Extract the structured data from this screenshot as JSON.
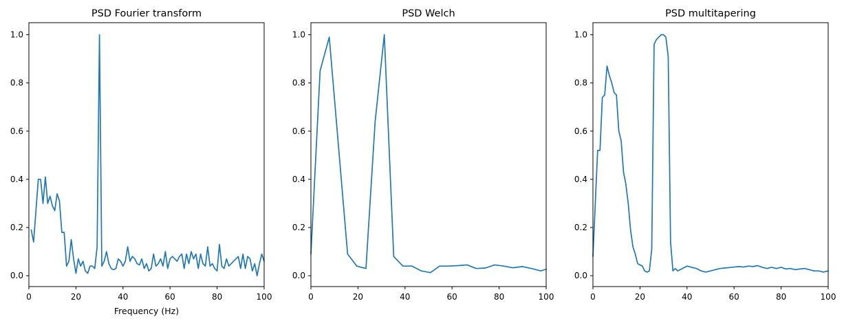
{
  "chart_data": [
    {
      "type": "line",
      "title": "PSD Fourier transform",
      "xlabel": "Frequency (Hz)",
      "ylabel": "",
      "xlim": [
        0,
        100
      ],
      "ylim": [
        -0.045,
        1.05
      ],
      "xticks": [
        0,
        20,
        40,
        60,
        80,
        100
      ],
      "xtick_labels": [
        "0",
        "20",
        "40",
        "60",
        "80",
        "100"
      ],
      "yticks": [
        0.0,
        0.2,
        0.4,
        0.6,
        0.8,
        1.0
      ],
      "ytick_labels": [
        "0.0",
        "0.2",
        "0.4",
        "0.6",
        "0.8",
        "1.0"
      ],
      "grid": false,
      "color": "#1f77b4",
      "series": [
        {
          "x": [
            1,
            2,
            3,
            4,
            5,
            6,
            7,
            8,
            9,
            10,
            11,
            12,
            13,
            14,
            15,
            16,
            17,
            18,
            19,
            20,
            21,
            22,
            23,
            24,
            25,
            26,
            27,
            28,
            29,
            30,
            31,
            32,
            33,
            34,
            35,
            36,
            37,
            38,
            39,
            40,
            41,
            42,
            43,
            44,
            45,
            46,
            47,
            48,
            49,
            50,
            51,
            52,
            53,
            54,
            55,
            56,
            57,
            58,
            59,
            60,
            61,
            62,
            63,
            64,
            65,
            66,
            67,
            68,
            69,
            70,
            71,
            72,
            73,
            74,
            75,
            76,
            77,
            78,
            79,
            80,
            81,
            82,
            83,
            84,
            85,
            86,
            87,
            88,
            89,
            90,
            91,
            92,
            93,
            94,
            95,
            96,
            97,
            98,
            99,
            100
          ],
          "y": [
            0.19,
            0.14,
            0.27,
            0.4,
            0.4,
            0.3,
            0.41,
            0.3,
            0.33,
            0.29,
            0.27,
            0.34,
            0.31,
            0.18,
            0.18,
            0.04,
            0.06,
            0.15,
            0.07,
            0.01,
            0.07,
            0.04,
            0.06,
            0.02,
            0.01,
            0.04,
            0.04,
            0.03,
            0.12,
            1.0,
            0.04,
            0.06,
            0.1,
            0.05,
            0.03,
            0.025,
            0.03,
            0.07,
            0.06,
            0.04,
            0.06,
            0.12,
            0.06,
            0.08,
            0.07,
            0.05,
            0.045,
            0.07,
            0.03,
            0.05,
            0.02,
            0.03,
            0.09,
            0.04,
            0.05,
            0.07,
            0.04,
            0.1,
            0.03,
            0.07,
            0.08,
            0.07,
            0.06,
            0.08,
            0.09,
            0.03,
            0.09,
            0.05,
            0.1,
            0.07,
            0.09,
            0.03,
            0.09,
            0.05,
            0.04,
            0.12,
            0.04,
            0.05,
            0.03,
            0.02,
            0.13,
            0.04,
            0.03,
            0.07,
            0.04,
            0.05,
            0.06,
            0.07,
            0.08,
            0.03,
            0.09,
            0.03,
            0.08,
            0.07,
            0.02,
            0.05,
            0.0,
            0.05,
            0.09,
            0.06
          ]
        }
      ]
    },
    {
      "type": "line",
      "title": "PSD Welch",
      "xlabel": "",
      "ylabel": "",
      "xlim": [
        0,
        100
      ],
      "ylim": [
        -0.045,
        1.05
      ],
      "xticks": [
        0,
        20,
        40,
        60,
        80,
        100
      ],
      "xtick_labels": [
        "0",
        "20",
        "40",
        "60",
        "80",
        "100"
      ],
      "yticks": [
        0.0,
        0.2,
        0.4,
        0.6,
        0.8,
        1.0
      ],
      "ytick_labels": [
        "0.0",
        "0.2",
        "0.4",
        "0.6",
        "0.8",
        "1.0"
      ],
      "grid": false,
      "color": "#1f77b4",
      "series": [
        {
          "x": [
            0,
            3.9,
            7.8,
            11.7,
            15.6,
            19.5,
            23.4,
            27.3,
            31.2,
            35.2,
            39.1,
            43.0,
            46.9,
            50.8,
            54.7,
            58.6,
            62.5,
            66.4,
            70.3,
            74.2,
            78.1,
            82.0,
            85.9,
            89.8,
            93.8,
            97.7,
            100
          ],
          "y": [
            0.09,
            0.85,
            0.99,
            0.54,
            0.09,
            0.04,
            0.03,
            0.64,
            1.0,
            0.08,
            0.04,
            0.04,
            0.02,
            0.013,
            0.04,
            0.04,
            0.042,
            0.045,
            0.03,
            0.032,
            0.045,
            0.04,
            0.033,
            0.038,
            0.03,
            0.02,
            0.027
          ]
        }
      ]
    },
    {
      "type": "line",
      "title": "PSD multitapering",
      "xlabel": "",
      "ylabel": "",
      "xlim": [
        0,
        100
      ],
      "ylim": [
        -0.045,
        1.05
      ],
      "xticks": [
        0,
        20,
        40,
        60,
        80,
        100
      ],
      "xtick_labels": [
        "0",
        "20",
        "40",
        "60",
        "80",
        "100"
      ],
      "yticks": [
        0.0,
        0.2,
        0.4,
        0.6,
        0.8,
        1.0
      ],
      "ytick_labels": [
        "0.0",
        "0.2",
        "0.4",
        "0.6",
        "0.8",
        "1.0"
      ],
      "grid": false,
      "color": "#1f77b4",
      "series": [
        {
          "x": [
            0,
            1,
            2,
            3,
            4,
            5,
            6,
            7,
            8,
            9,
            10,
            11,
            12,
            13,
            14,
            15,
            16,
            17,
            18,
            19,
            20,
            21,
            22,
            23,
            24,
            25,
            26,
            27,
            28,
            29,
            30,
            31,
            32,
            33,
            34,
            35,
            36,
            37,
            38,
            39,
            40,
            42,
            44,
            46,
            48,
            50,
            52,
            54,
            56,
            58,
            60,
            62,
            64,
            66,
            68,
            70,
            72,
            74,
            76,
            78,
            80,
            82,
            84,
            86,
            88,
            90,
            92,
            94,
            96,
            98,
            100
          ],
          "y": [
            0.08,
            0.3,
            0.52,
            0.52,
            0.74,
            0.75,
            0.87,
            0.83,
            0.8,
            0.76,
            0.75,
            0.6,
            0.56,
            0.43,
            0.38,
            0.3,
            0.19,
            0.12,
            0.09,
            0.05,
            0.045,
            0.04,
            0.02,
            0.015,
            0.02,
            0.11,
            0.96,
            0.98,
            0.99,
            1.0,
            1.0,
            0.99,
            0.91,
            0.14,
            0.02,
            0.03,
            0.02,
            0.025,
            0.03,
            0.035,
            0.04,
            0.035,
            0.03,
            0.02,
            0.015,
            0.02,
            0.025,
            0.03,
            0.032,
            0.034,
            0.036,
            0.038,
            0.036,
            0.04,
            0.038,
            0.042,
            0.035,
            0.03,
            0.035,
            0.03,
            0.035,
            0.028,
            0.03,
            0.025,
            0.028,
            0.03,
            0.025,
            0.02,
            0.02,
            0.015,
            0.02
          ]
        }
      ]
    }
  ]
}
